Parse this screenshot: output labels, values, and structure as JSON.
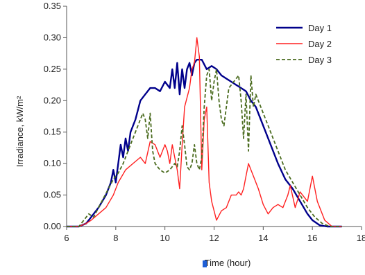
{
  "chart_data": {
    "type": "line",
    "xlabel": "Time (hour)",
    "ylabel": "Irradiance, kW/m²",
    "xlim": [
      6,
      18
    ],
    "ylim": [
      0,
      0.35
    ],
    "x_ticks": [
      "6",
      "8",
      "10",
      "12",
      "14",
      "16",
      "18"
    ],
    "y_ticks": [
      "0.00",
      "0.05",
      "0.10",
      "0.15",
      "0.20",
      "0.25",
      "0.30",
      "0.35"
    ],
    "grid": false,
    "legend_position": "top-right",
    "series": [
      {
        "name": "Day 1",
        "color": "#00008b",
        "dash": "solid",
        "x": [
          6.0,
          6.5,
          6.8,
          7.0,
          7.3,
          7.6,
          7.8,
          7.9,
          8.0,
          8.1,
          8.2,
          8.3,
          8.4,
          8.5,
          8.6,
          8.8,
          9.0,
          9.2,
          9.4,
          9.6,
          9.8,
          10.0,
          10.2,
          10.3,
          10.4,
          10.5,
          10.6,
          10.7,
          10.8,
          10.9,
          11.0,
          11.1,
          11.2,
          11.3,
          11.5,
          11.7,
          11.9,
          12.1,
          12.3,
          12.5,
          12.7,
          12.9,
          13.1,
          13.3,
          13.5,
          13.7,
          13.9,
          14.1,
          14.3,
          14.6,
          14.9,
          15.2,
          15.5,
          15.8,
          16.0,
          16.3,
          16.6,
          16.9,
          17.2
        ],
        "y": [
          0,
          0,
          0.005,
          0.015,
          0.03,
          0.05,
          0.07,
          0.09,
          0.07,
          0.1,
          0.13,
          0.11,
          0.14,
          0.12,
          0.15,
          0.17,
          0.2,
          0.21,
          0.22,
          0.22,
          0.215,
          0.23,
          0.22,
          0.25,
          0.22,
          0.26,
          0.21,
          0.25,
          0.22,
          0.25,
          0.26,
          0.24,
          0.26,
          0.265,
          0.265,
          0.25,
          0.255,
          0.25,
          0.24,
          0.235,
          0.23,
          0.225,
          0.22,
          0.215,
          0.2,
          0.19,
          0.17,
          0.15,
          0.13,
          0.1,
          0.075,
          0.06,
          0.04,
          0.02,
          0.01,
          0.002,
          0,
          0,
          0
        ]
      },
      {
        "name": "Day 2",
        "color": "#ff2020",
        "dash": "solid",
        "x": [
          6.0,
          6.5,
          6.8,
          7.0,
          7.3,
          7.6,
          7.9,
          8.1,
          8.4,
          8.7,
          9.0,
          9.2,
          9.4,
          9.6,
          9.8,
          10.0,
          10.1,
          10.2,
          10.3,
          10.4,
          10.5,
          10.6,
          10.7,
          10.8,
          11.0,
          11.1,
          11.2,
          11.3,
          11.4,
          11.5,
          11.6,
          11.7,
          11.8,
          11.9,
          12.1,
          12.3,
          12.5,
          12.7,
          12.9,
          13.0,
          13.1,
          13.2,
          13.3,
          13.4,
          13.6,
          13.8,
          14.0,
          14.2,
          14.4,
          14.6,
          14.8,
          15.0,
          15.1,
          15.3,
          15.5,
          15.6,
          15.8,
          16.0,
          16.2,
          16.5,
          16.8,
          17.2
        ],
        "y": [
          0,
          0,
          0.005,
          0.01,
          0.02,
          0.03,
          0.05,
          0.07,
          0.09,
          0.1,
          0.11,
          0.1,
          0.135,
          0.13,
          0.11,
          0.13,
          0.12,
          0.1,
          0.13,
          0.11,
          0.09,
          0.06,
          0.13,
          0.19,
          0.22,
          0.25,
          0.26,
          0.3,
          0.27,
          0.09,
          0.17,
          0.19,
          0.07,
          0.04,
          0.01,
          0.025,
          0.03,
          0.05,
          0.05,
          0.055,
          0.05,
          0.06,
          0.08,
          0.1,
          0.08,
          0.06,
          0.035,
          0.02,
          0.03,
          0.035,
          0.03,
          0.05,
          0.065,
          0.03,
          0.055,
          0.05,
          0.04,
          0.08,
          0.04,
          0.01,
          0,
          0
        ]
      },
      {
        "name": "Day 3",
        "color": "#4a6b1e",
        "dash": "dashed",
        "x": [
          6.0,
          6.5,
          6.7,
          6.9,
          7.1,
          7.3,
          7.5,
          7.7,
          7.9,
          8.1,
          8.3,
          8.5,
          8.7,
          8.9,
          9.1,
          9.2,
          9.3,
          9.4,
          9.5,
          9.6,
          9.7,
          9.8,
          10.0,
          10.2,
          10.4,
          10.5,
          10.6,
          10.7,
          10.8,
          10.9,
          11.0,
          11.1,
          11.2,
          11.3,
          11.4,
          11.5,
          11.6,
          11.7,
          11.8,
          11.9,
          12.0,
          12.1,
          12.2,
          12.3,
          12.4,
          12.5,
          12.6,
          12.8,
          13.0,
          13.1,
          13.2,
          13.3,
          13.4,
          13.5,
          13.6,
          13.7,
          13.9,
          14.1,
          14.3,
          14.6,
          14.9,
          15.2,
          15.5,
          15.8,
          16.1,
          16.4,
          16.7,
          17.2
        ],
        "y": [
          0,
          0,
          0.01,
          0.02,
          0.015,
          0.03,
          0.045,
          0.06,
          0.075,
          0.085,
          0.1,
          0.12,
          0.14,
          0.16,
          0.18,
          0.17,
          0.14,
          0.18,
          0.12,
          0.1,
          0.095,
          0.09,
          0.085,
          0.09,
          0.1,
          0.095,
          0.12,
          0.16,
          0.13,
          0.095,
          0.09,
          0.1,
          0.13,
          0.1,
          0.09,
          0.11,
          0.19,
          0.24,
          0.25,
          0.2,
          0.23,
          0.25,
          0.2,
          0.17,
          0.16,
          0.19,
          0.22,
          0.23,
          0.24,
          0.2,
          0.14,
          0.21,
          0.12,
          0.24,
          0.19,
          0.21,
          0.19,
          0.17,
          0.15,
          0.12,
          0.09,
          0.07,
          0.05,
          0.03,
          0.015,
          0.005,
          0,
          0
        ]
      }
    ]
  }
}
